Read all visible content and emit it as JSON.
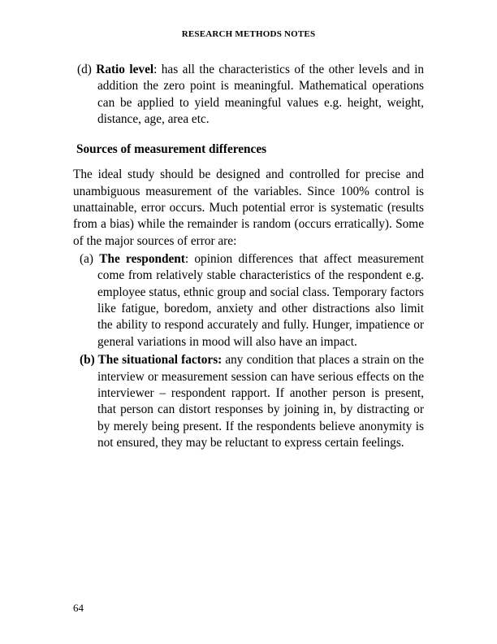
{
  "header": "RESEARCH METHODS NOTES",
  "item_d_marker": "(d) ",
  "item_d_label": "Ratio level",
  "item_d_text": ": has all the characteristics of the other levels and in addition the zero point is meaningful. Mathematical operations can be applied to yield meaningful values e.g. height, weight, distance, age, area etc.",
  "section_title": "Sources of measurement differences",
  "intro": "The ideal study should be designed and controlled for precise and unambiguous measurement of the variables. Since 100% control is unattainable, error occurs. Much potential error is systematic (results from a bias) while the remainder is random (occurs erratically). Some of the major sources of error are:",
  "sub_a_marker": "(a) ",
  "sub_a_label": "The respondent",
  "sub_a_text": ": opinion differences that affect measurement come from relatively stable characteristics of the respondent e.g. employee status, ethnic group and social class. Temporary factors like fatigue, boredom, anxiety and other distractions also limit the ability to respond accurately and fully. Hunger, impatience or general variations in mood will also have an impact.",
  "sub_b_marker": "(b) ",
  "sub_b_label": "The situational factors:",
  "sub_b_text": "  any condition that places a strain on the interview or measurement session can have serious effects on the interviewer – respondent rapport. If another person is present, that person can distort responses by joining in, by distracting or by merely being present. If the respondents believe anonymity is not ensured, they may be reluctant to express certain feelings.",
  "page_number": "64"
}
